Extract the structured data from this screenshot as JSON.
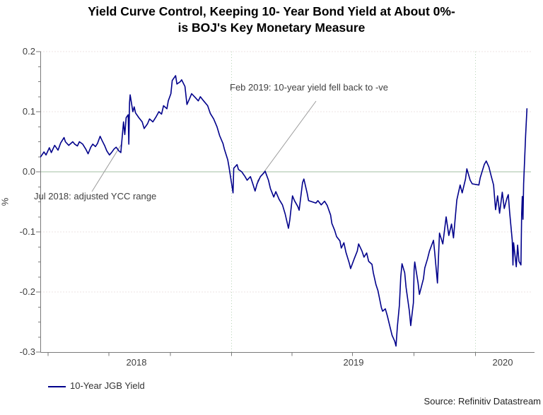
{
  "title": {
    "line1": "Yield Curve Control, Keeping 10- Year Bond Yield at About 0%-",
    "line2": "is BOJ's Key Monetary Measure"
  },
  "source": "Source: Refinitiv Datastream",
  "chart_data": {
    "type": "line",
    "title": "Yield Curve Control, Keeping 10- Year Bond Yield at About 0%- is BOJ's Key Monetary Measure",
    "ylabel": "%",
    "ylim": [
      -0.3,
      0.2
    ],
    "ytick_labels": [
      "0.2",
      "0.1",
      "0.0",
      "-0.1",
      "-0.2",
      "-0.3"
    ],
    "xtick_labels": [
      "2018",
      "2019",
      "2020"
    ],
    "x_domain": [
      "2018-03-21",
      "2020-03-24"
    ],
    "xticks": [
      "2018-04-01",
      "2018-07-01",
      "2018-10-01",
      "2019-01-01",
      "2019-04-01",
      "2019-07-01",
      "2019-10-01",
      "2020-01-01"
    ],
    "year_gridlines": [
      "2019-01-01",
      "2020-01-01"
    ],
    "zero_line": 0.0,
    "minor_hgrid": [
      0.2,
      0.1,
      -0.1,
      -0.2
    ],
    "grid": "faint-dotted",
    "legend_position": "bottom-left",
    "annotations": [
      {
        "text": "Feb 2019: 10-year yield fell back to -ve",
        "anchor_date": "2019-02-08",
        "anchor_value": -0.016
      },
      {
        "text": "Jul 2018: adjusted YCC range",
        "anchor_date": "2018-07-20",
        "anchor_value": 0.046
      }
    ],
    "series": [
      {
        "name": "10-Year JGB Yield",
        "color": "#00008b",
        "points": [
          [
            "2018-03-21",
            0.025
          ],
          [
            "2018-03-26",
            0.033
          ],
          [
            "2018-03-29",
            0.028
          ],
          [
            "2018-04-03",
            0.04
          ],
          [
            "2018-04-06",
            0.032
          ],
          [
            "2018-04-11",
            0.044
          ],
          [
            "2018-04-16",
            0.036
          ],
          [
            "2018-04-20",
            0.048
          ],
          [
            "2018-04-25",
            0.057
          ],
          [
            "2018-04-27",
            0.05
          ],
          [
            "2018-05-02",
            0.044
          ],
          [
            "2018-05-08",
            0.05
          ],
          [
            "2018-05-11",
            0.046
          ],
          [
            "2018-05-15",
            0.043
          ],
          [
            "2018-05-18",
            0.05
          ],
          [
            "2018-05-23",
            0.046
          ],
          [
            "2018-05-28",
            0.037
          ],
          [
            "2018-05-31",
            0.03
          ],
          [
            "2018-06-04",
            0.041
          ],
          [
            "2018-06-07",
            0.046
          ],
          [
            "2018-06-11",
            0.042
          ],
          [
            "2018-06-14",
            0.047
          ],
          [
            "2018-06-18",
            0.059
          ],
          [
            "2018-06-21",
            0.052
          ],
          [
            "2018-06-25",
            0.043
          ],
          [
            "2018-06-28",
            0.035
          ],
          [
            "2018-07-02",
            0.028
          ],
          [
            "2018-07-05",
            0.032
          ],
          [
            "2018-07-09",
            0.038
          ],
          [
            "2018-07-12",
            0.041
          ],
          [
            "2018-07-16",
            0.035
          ],
          [
            "2018-07-19",
            0.032
          ],
          [
            "2018-07-23",
            0.083
          ],
          [
            "2018-07-25",
            0.062
          ],
          [
            "2018-07-27",
            0.09
          ],
          [
            "2018-07-30",
            0.095
          ],
          [
            "2018-07-31",
            0.046
          ],
          [
            "2018-08-01",
            0.115
          ],
          [
            "2018-08-02",
            0.128
          ],
          [
            "2018-08-06",
            0.1
          ],
          [
            "2018-08-08",
            0.108
          ],
          [
            "2018-08-10",
            0.098
          ],
          [
            "2018-08-15",
            0.09
          ],
          [
            "2018-08-20",
            0.083
          ],
          [
            "2018-08-23",
            0.072
          ],
          [
            "2018-08-28",
            0.08
          ],
          [
            "2018-08-31",
            0.088
          ],
          [
            "2018-09-05",
            0.083
          ],
          [
            "2018-09-10",
            0.092
          ],
          [
            "2018-09-14",
            0.1
          ],
          [
            "2018-09-18",
            0.096
          ],
          [
            "2018-09-21",
            0.11
          ],
          [
            "2018-09-26",
            0.105
          ],
          [
            "2018-09-28",
            0.118
          ],
          [
            "2018-10-02",
            0.13
          ],
          [
            "2018-10-04",
            0.152
          ],
          [
            "2018-10-09",
            0.16
          ],
          [
            "2018-10-11",
            0.146
          ],
          [
            "2018-10-16",
            0.15
          ],
          [
            "2018-10-18",
            0.153
          ],
          [
            "2018-10-23",
            0.142
          ],
          [
            "2018-10-26",
            0.112
          ],
          [
            "2018-10-30",
            0.122
          ],
          [
            "2018-11-02",
            0.13
          ],
          [
            "2018-11-07",
            0.124
          ],
          [
            "2018-11-12",
            0.118
          ],
          [
            "2018-11-15",
            0.125
          ],
          [
            "2018-11-20",
            0.118
          ],
          [
            "2018-11-26",
            0.11
          ],
          [
            "2018-11-30",
            0.097
          ],
          [
            "2018-12-05",
            0.088
          ],
          [
            "2018-12-10",
            0.075
          ],
          [
            "2018-12-14",
            0.06
          ],
          [
            "2018-12-19",
            0.047
          ],
          [
            "2018-12-21",
            0.038
          ],
          [
            "2018-12-26",
            0.02
          ],
          [
            "2018-12-28",
            0.008
          ],
          [
            "2019-01-03",
            -0.035
          ],
          [
            "2019-01-04",
            0.006
          ],
          [
            "2019-01-09",
            0.012
          ],
          [
            "2019-01-11",
            0.004
          ],
          [
            "2019-01-16",
            0.0
          ],
          [
            "2019-01-21",
            -0.008
          ],
          [
            "2019-01-24",
            -0.014
          ],
          [
            "2019-01-29",
            -0.008
          ],
          [
            "2019-02-01",
            -0.018
          ],
          [
            "2019-02-05",
            -0.032
          ],
          [
            "2019-02-08",
            -0.02
          ],
          [
            "2019-02-13",
            -0.008
          ],
          [
            "2019-02-18",
            -0.002
          ],
          [
            "2019-02-20",
            0.001
          ],
          [
            "2019-02-25",
            -0.014
          ],
          [
            "2019-02-28",
            -0.028
          ],
          [
            "2019-03-05",
            -0.042
          ],
          [
            "2019-03-08",
            -0.033
          ],
          [
            "2019-03-13",
            -0.046
          ],
          [
            "2019-03-18",
            -0.055
          ],
          [
            "2019-03-22",
            -0.07
          ],
          [
            "2019-03-27",
            -0.094
          ],
          [
            "2019-03-29",
            -0.08
          ],
          [
            "2019-04-02",
            -0.04
          ],
          [
            "2019-04-05",
            -0.048
          ],
          [
            "2019-04-10",
            -0.058
          ],
          [
            "2019-04-12",
            -0.064
          ],
          [
            "2019-04-17",
            -0.018
          ],
          [
            "2019-04-19",
            -0.012
          ],
          [
            "2019-04-24",
            -0.036
          ],
          [
            "2019-04-26",
            -0.048
          ],
          [
            "2019-05-07",
            -0.052
          ],
          [
            "2019-05-10",
            -0.048
          ],
          [
            "2019-05-15",
            -0.055
          ],
          [
            "2019-05-20",
            -0.049
          ],
          [
            "2019-05-24",
            -0.056
          ],
          [
            "2019-05-29",
            -0.072
          ],
          [
            "2019-05-31",
            -0.086
          ],
          [
            "2019-06-04",
            -0.097
          ],
          [
            "2019-06-07",
            -0.108
          ],
          [
            "2019-06-12",
            -0.115
          ],
          [
            "2019-06-14",
            -0.127
          ],
          [
            "2019-06-18",
            -0.118
          ],
          [
            "2019-06-21",
            -0.134
          ],
          [
            "2019-06-26",
            -0.152
          ],
          [
            "2019-06-28",
            -0.161
          ],
          [
            "2019-07-03",
            -0.146
          ],
          [
            "2019-07-08",
            -0.132
          ],
          [
            "2019-07-10",
            -0.12
          ],
          [
            "2019-07-15",
            -0.132
          ],
          [
            "2019-07-18",
            -0.142
          ],
          [
            "2019-07-22",
            -0.135
          ],
          [
            "2019-07-25",
            -0.149
          ],
          [
            "2019-07-30",
            -0.154
          ],
          [
            "2019-08-01",
            -0.168
          ],
          [
            "2019-08-05",
            -0.188
          ],
          [
            "2019-08-08",
            -0.198
          ],
          [
            "2019-08-13",
            -0.226
          ],
          [
            "2019-08-15",
            -0.232
          ],
          [
            "2019-08-19",
            -0.228
          ],
          [
            "2019-08-22",
            -0.24
          ],
          [
            "2019-08-26",
            -0.258
          ],
          [
            "2019-08-29",
            -0.272
          ],
          [
            "2019-09-02",
            -0.282
          ],
          [
            "2019-09-04",
            -0.29
          ],
          [
            "2019-09-06",
            -0.258
          ],
          [
            "2019-09-09",
            -0.222
          ],
          [
            "2019-09-11",
            -0.175
          ],
          [
            "2019-09-13",
            -0.153
          ],
          [
            "2019-09-17",
            -0.168
          ],
          [
            "2019-09-19",
            -0.192
          ],
          [
            "2019-09-24",
            -0.232
          ],
          [
            "2019-09-26",
            -0.256
          ],
          [
            "2019-09-30",
            -0.218
          ],
          [
            "2019-10-01",
            -0.163
          ],
          [
            "2019-10-02",
            -0.15
          ],
          [
            "2019-10-07",
            -0.185
          ],
          [
            "2019-10-09",
            -0.204
          ],
          [
            "2019-10-15",
            -0.178
          ],
          [
            "2019-10-17",
            -0.16
          ],
          [
            "2019-10-21",
            -0.145
          ],
          [
            "2019-10-24",
            -0.132
          ],
          [
            "2019-10-28",
            -0.12
          ],
          [
            "2019-10-30",
            -0.114
          ],
          [
            "2019-11-01",
            -0.135
          ],
          [
            "2019-11-05",
            -0.185
          ],
          [
            "2019-11-07",
            -0.13
          ],
          [
            "2019-11-08",
            -0.102
          ],
          [
            "2019-11-13",
            -0.12
          ],
          [
            "2019-11-18",
            -0.075
          ],
          [
            "2019-11-22",
            -0.106
          ],
          [
            "2019-11-26",
            -0.087
          ],
          [
            "2019-11-29",
            -0.11
          ],
          [
            "2019-12-04",
            -0.047
          ],
          [
            "2019-12-09",
            -0.022
          ],
          [
            "2019-12-12",
            -0.035
          ],
          [
            "2019-12-17",
            -0.012
          ],
          [
            "2019-12-19",
            0.005
          ],
          [
            "2019-12-24",
            -0.014
          ],
          [
            "2019-12-27",
            -0.02
          ],
          [
            "2020-01-06",
            -0.022
          ],
          [
            "2020-01-08",
            -0.01
          ],
          [
            "2020-01-14",
            0.012
          ],
          [
            "2020-01-17",
            0.018
          ],
          [
            "2020-01-21",
            0.008
          ],
          [
            "2020-01-24",
            -0.005
          ],
          [
            "2020-01-28",
            -0.022
          ],
          [
            "2020-01-31",
            -0.063
          ],
          [
            "2020-02-03",
            -0.04
          ],
          [
            "2020-02-06",
            -0.069
          ],
          [
            "2020-02-10",
            -0.034
          ],
          [
            "2020-02-13",
            -0.061
          ],
          [
            "2020-02-17",
            -0.044
          ],
          [
            "2020-02-19",
            -0.038
          ],
          [
            "2020-02-21",
            -0.067
          ],
          [
            "2020-02-25",
            -0.114
          ],
          [
            "2020-02-26",
            -0.155
          ],
          [
            "2020-02-27",
            -0.118
          ],
          [
            "2020-03-02",
            -0.158
          ],
          [
            "2020-03-04",
            -0.122
          ],
          [
            "2020-03-06",
            -0.149
          ],
          [
            "2020-03-09",
            -0.155
          ],
          [
            "2020-03-10",
            -0.071
          ],
          [
            "2020-03-11",
            -0.041
          ],
          [
            "2020-03-12",
            -0.079
          ],
          [
            "2020-03-13",
            -0.02
          ],
          [
            "2020-03-16",
            0.06
          ],
          [
            "2020-03-18",
            0.105
          ]
        ]
      }
    ]
  }
}
